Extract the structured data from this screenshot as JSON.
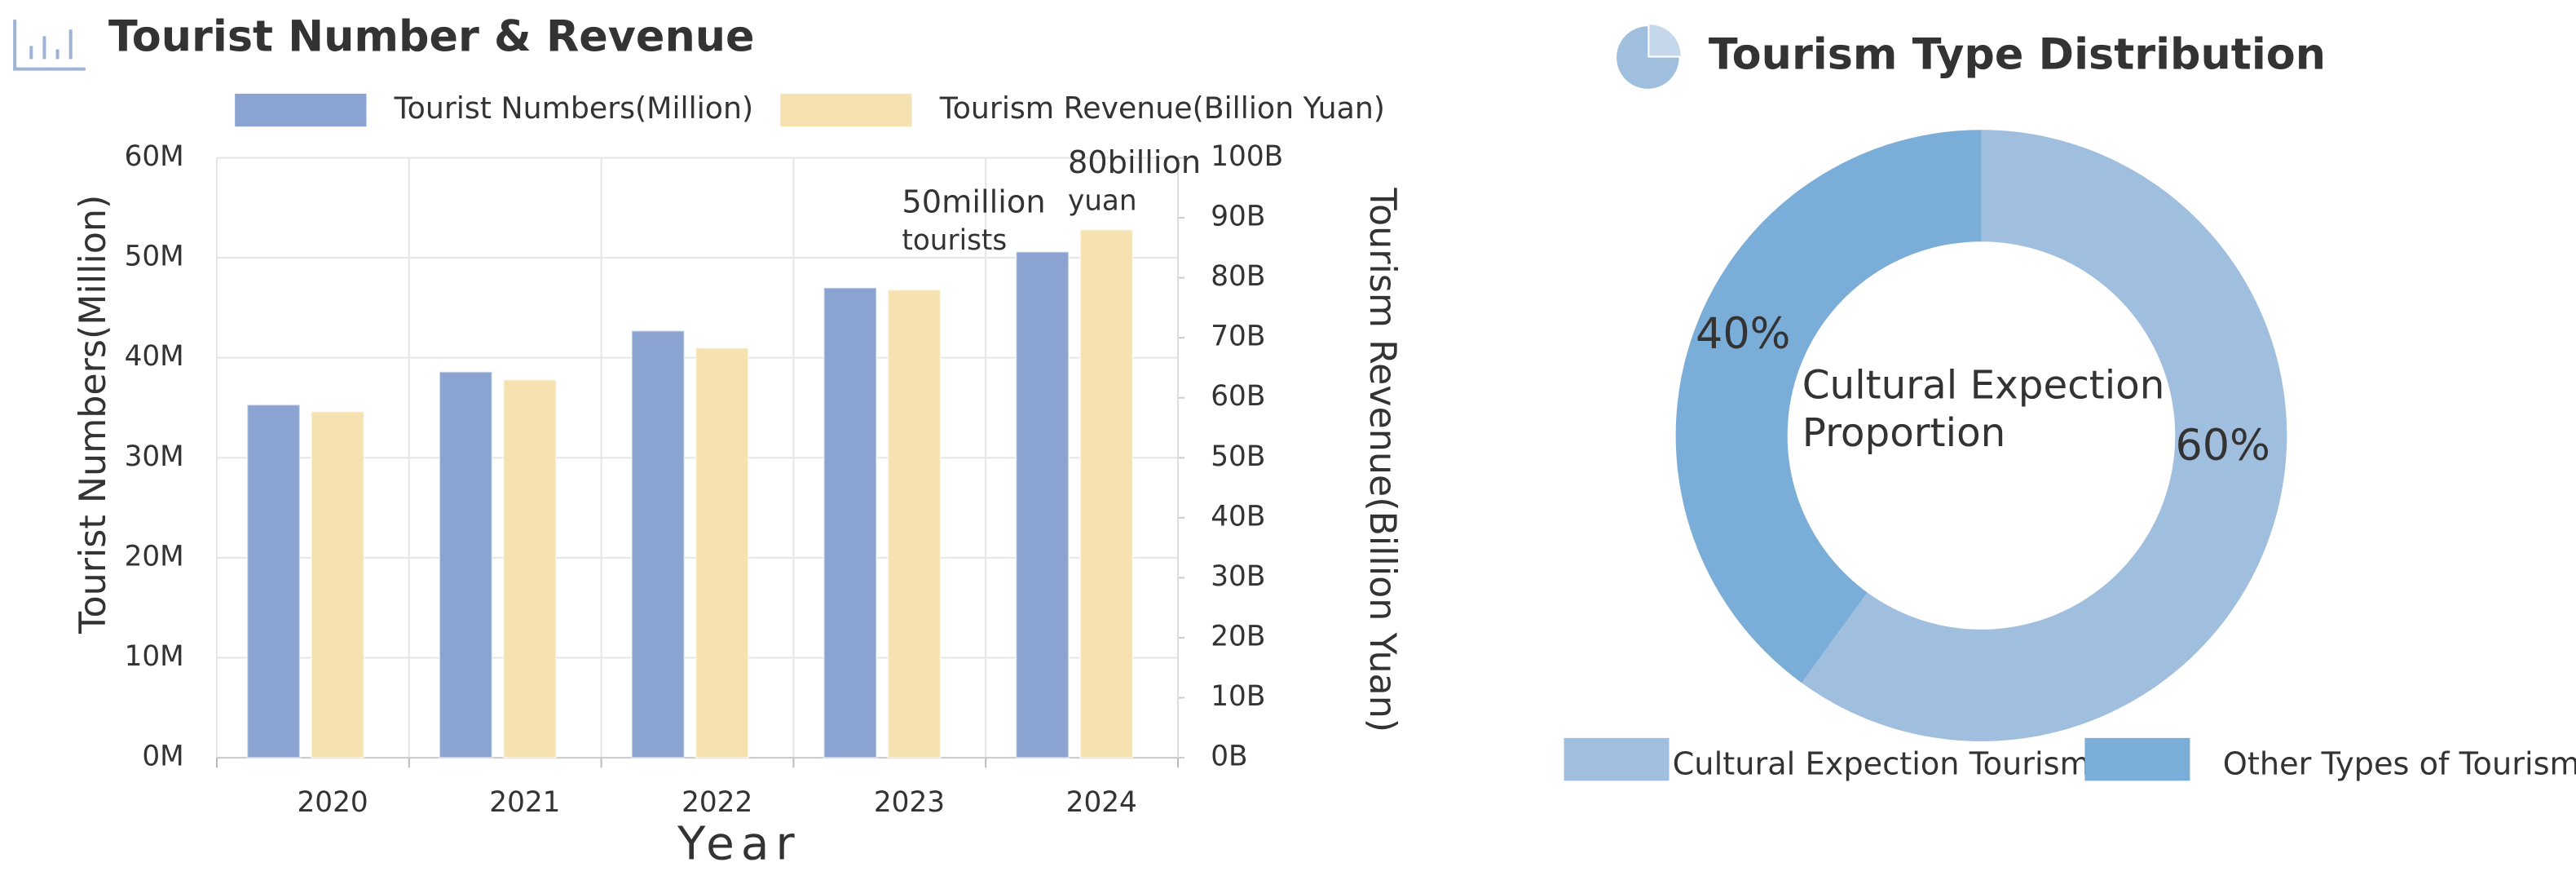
{
  "chart_data": [
    {
      "type": "bar",
      "title": "Tourist Number & Revenue",
      "x_label": "Year",
      "y_label": "Tourist  Numbers(Million)",
      "y2_label": "Tourism  Revenue(Billion Yuan)",
      "categories": [
        "2020",
        "2021",
        "2022",
        "2023",
        "2024"
      ],
      "series": [
        {
          "name": "Tourist Numbers(Million)",
          "color": "#8aa3d0",
          "values": [
            35.3,
            38.6,
            42.7,
            47,
            50.6
          ]
        },
        {
          "name": "Tourism Revenue(Billion Yuan)",
          "color": "#f5e2b0",
          "axis": "y2",
          "values": [
            57.7,
            63,
            68.3,
            78,
            88
          ]
        }
      ],
      "ylim": [
        0,
        60
      ],
      "yticks": [
        {
          "value": 0,
          "label": "0M"
        },
        {
          "value": 10,
          "label": "10M"
        },
        {
          "value": 20,
          "label": "20M"
        },
        {
          "value": 30,
          "label": "30M"
        },
        {
          "value": 40,
          "label": "40M"
        },
        {
          "value": 50,
          "label": "50M"
        },
        {
          "value": 60,
          "label": "60M"
        }
      ],
      "y2lim": [
        0,
        100
      ],
      "y2ticks": [
        {
          "value": 0,
          "label": "0B"
        },
        {
          "value": 10,
          "label": "10B"
        },
        {
          "value": 20,
          "label": "20B"
        },
        {
          "value": 30,
          "label": "30B"
        },
        {
          "value": 40,
          "label": "40B"
        },
        {
          "value": 50,
          "label": "50B"
        },
        {
          "value": 60,
          "label": "60B"
        },
        {
          "value": 70,
          "label": "70B"
        },
        {
          "value": 80,
          "label": "80B"
        },
        {
          "value": 90,
          "label": "90B"
        },
        {
          "value": 100,
          "label": "100B"
        }
      ],
      "grid": true,
      "legend": "top",
      "annotations": [
        [
          "50million",
          "tourists"
        ],
        [
          "80billion",
          "yuan"
        ]
      ]
    },
    {
      "type": "pie",
      "title": "Tourism Type Distribution",
      "donut": true,
      "labels": [
        "Cultural Expection Tourism",
        "Other Types of Tourism"
      ],
      "values": [
        60,
        40
      ],
      "value_labels": [
        "60%",
        "40%"
      ],
      "colors": [
        "#a0bfdf",
        "#7aaed8"
      ],
      "center_label": [
        "Cultural Expection",
        "Proportion"
      ],
      "legend": "bottom"
    }
  ]
}
